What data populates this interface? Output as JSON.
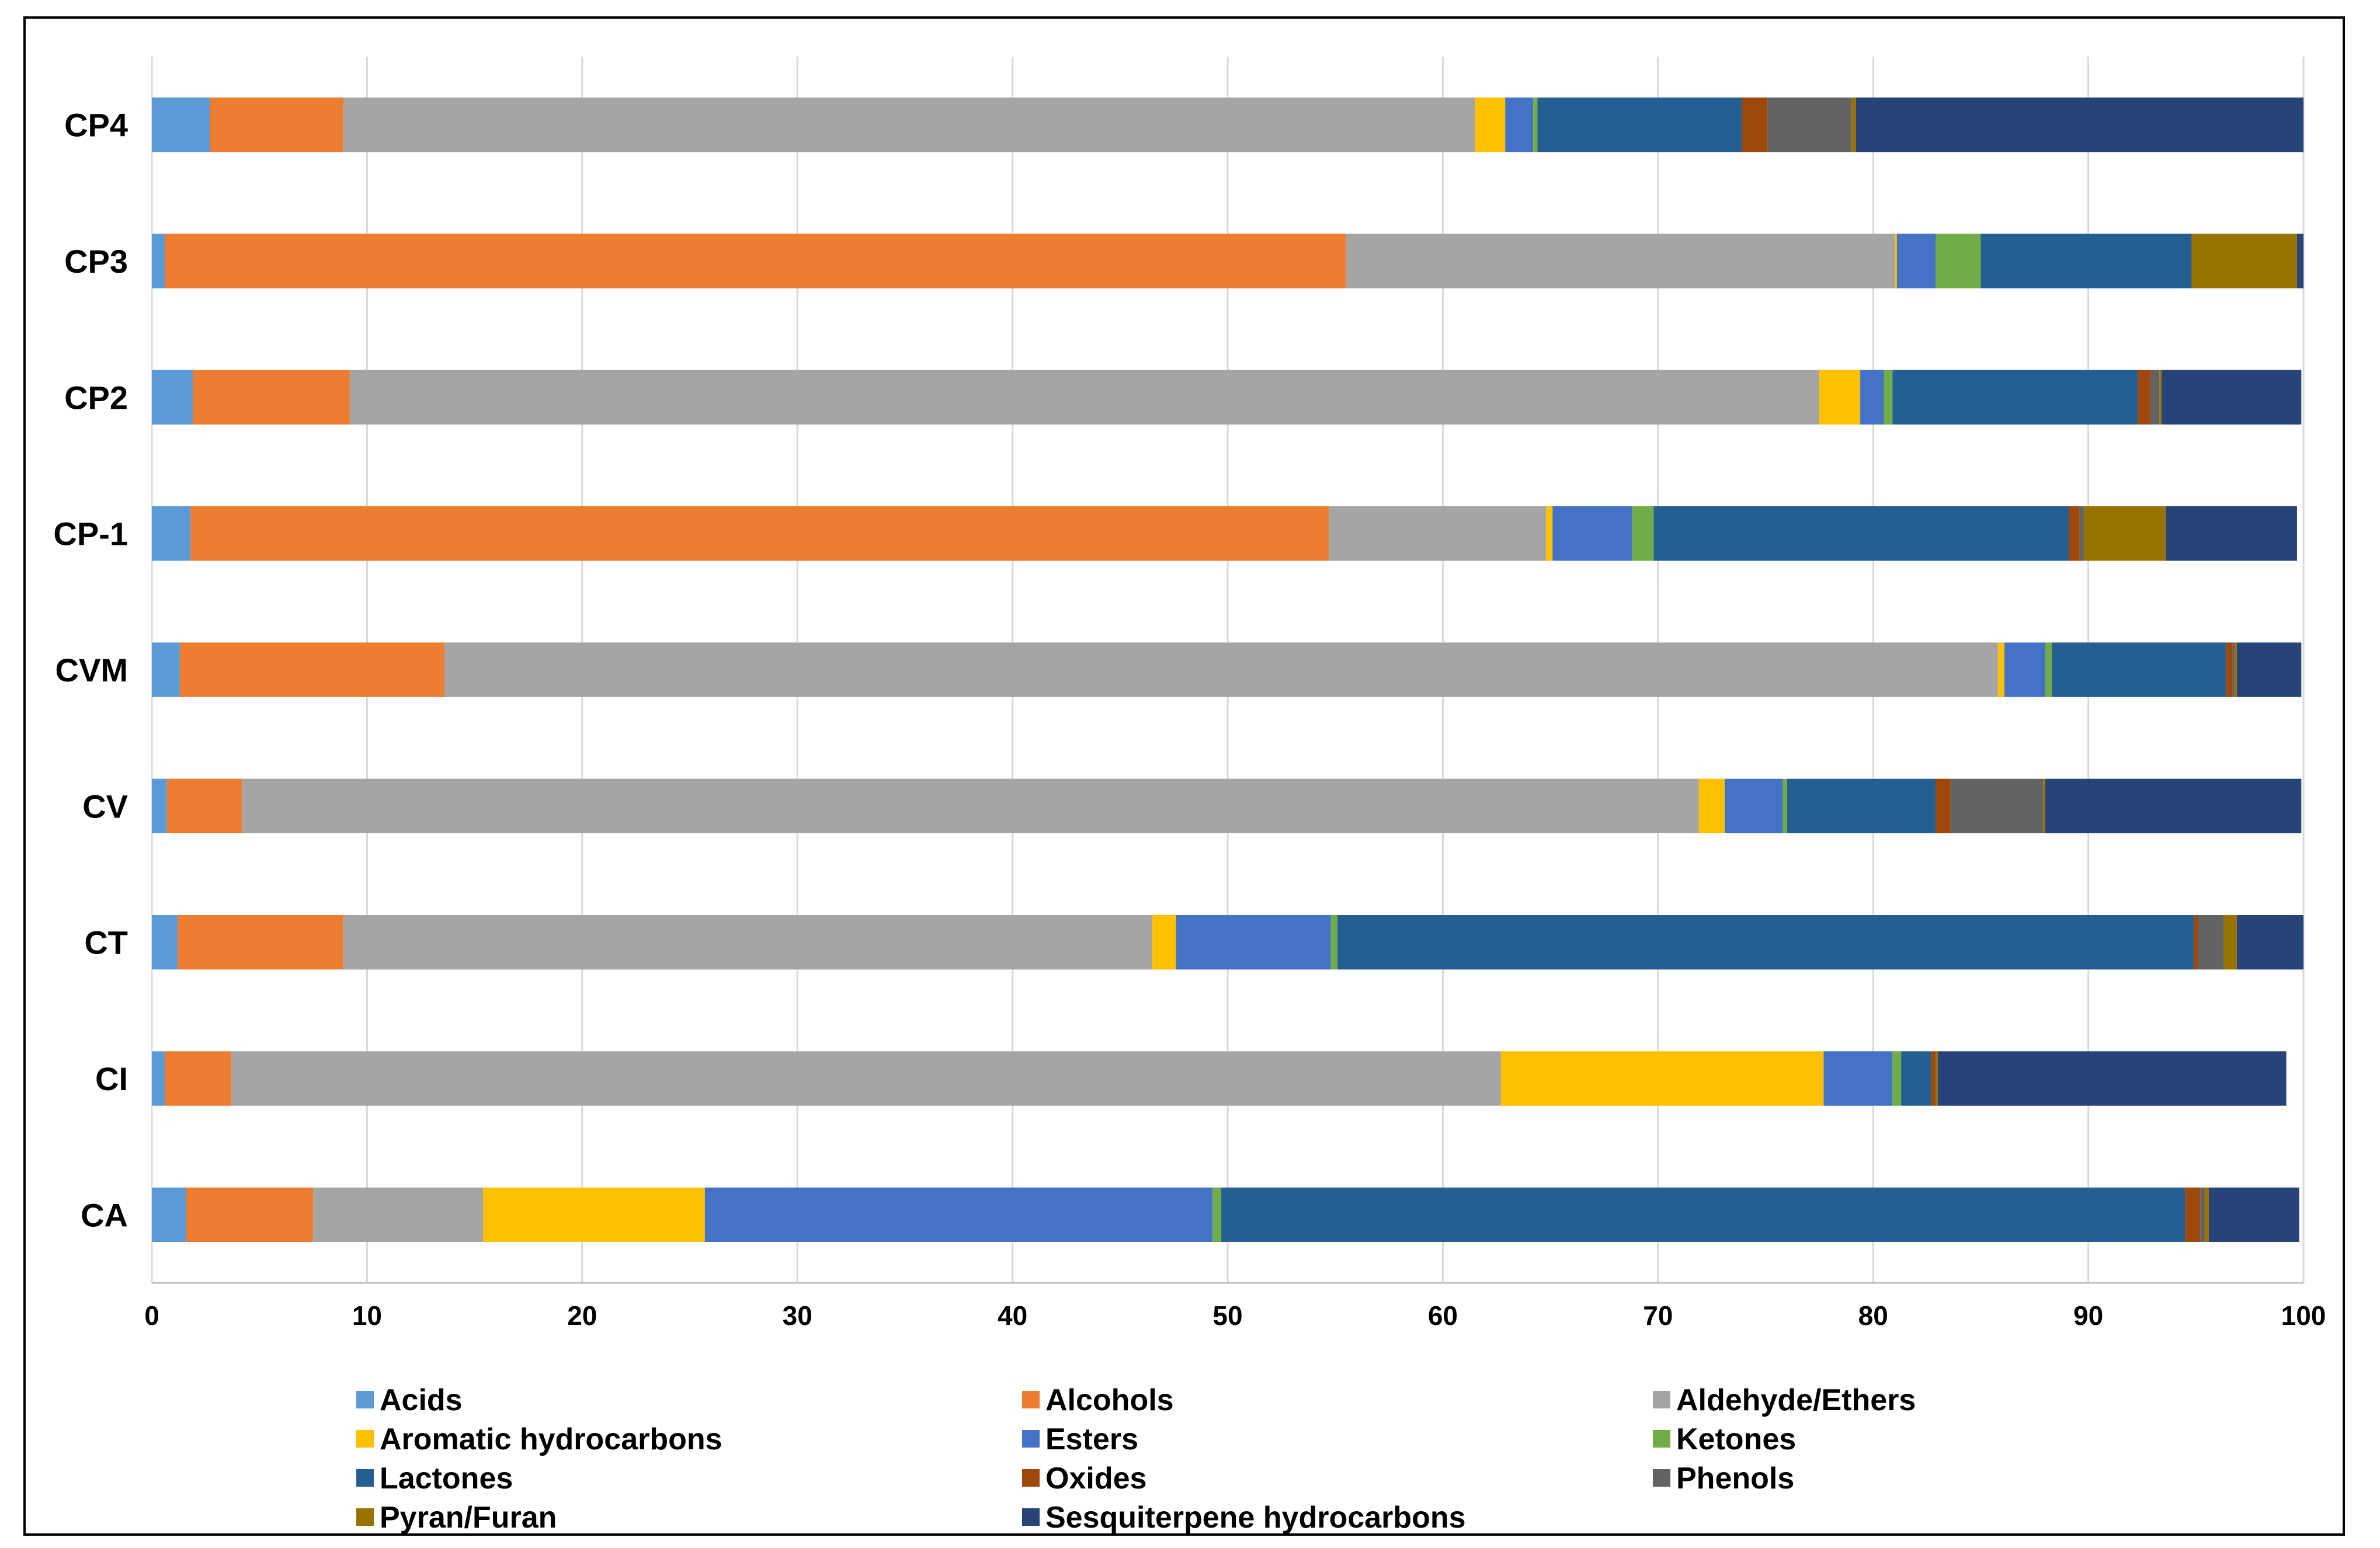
{
  "chart_data": {
    "type": "bar",
    "orientation": "horizontal",
    "stacked": true,
    "title": "",
    "xlabel": "",
    "ylabel": "",
    "xlim": [
      0,
      100
    ],
    "xticks": [
      0,
      10,
      20,
      30,
      40,
      50,
      60,
      70,
      80,
      90,
      100
    ],
    "grid": true,
    "legend_position": "bottom",
    "categories": [
      "CP4",
      "CP3",
      "CP2",
      "CP-1",
      "CVM",
      "CV",
      "CT",
      "CI",
      "CA"
    ],
    "series": [
      {
        "name": "Acids",
        "color": "#5B9BD5",
        "values": [
          2.7,
          0.6,
          1.9,
          1.8,
          1.3,
          0.7,
          1.2,
          0.6,
          1.6
        ]
      },
      {
        "name": "Alcohols",
        "color": "#ED7D31",
        "values": [
          6.2,
          54.9,
          7.3,
          52.9,
          12.3,
          3.5,
          7.7,
          3.1,
          5.9
        ]
      },
      {
        "name": "Aldehyde/Ethers",
        "color": "#A5A5A5",
        "values": [
          52.6,
          25.5,
          68.3,
          10.1,
          72.2,
          67.7,
          37.6,
          59.0,
          7.9
        ]
      },
      {
        "name": "Aromatic hydrocarbons",
        "color": "#FFC000",
        "values": [
          1.4,
          0.1,
          1.9,
          0.3,
          0.3,
          1.2,
          1.1,
          15.0,
          10.3
        ]
      },
      {
        "name": "Esters",
        "color": "#4472C4",
        "values": [
          1.3,
          1.8,
          1.1,
          3.7,
          1.9,
          2.7,
          7.2,
          3.2,
          23.6
        ]
      },
      {
        "name": "Ketones",
        "color": "#70AD47",
        "values": [
          0.2,
          2.1,
          0.4,
          1.0,
          0.3,
          0.2,
          0.3,
          0.4,
          0.4
        ]
      },
      {
        "name": "Lactones",
        "color": "#255E91",
        "values": [
          9.5,
          9.8,
          11.4,
          19.3,
          8.1,
          6.9,
          39.8,
          1.4,
          44.8
        ]
      },
      {
        "name": "Oxides",
        "color": "#9E480E",
        "values": [
          1.2,
          0.0,
          0.6,
          0.5,
          0.3,
          0.7,
          0.2,
          0.2,
          0.7
        ]
      },
      {
        "name": "Phenols",
        "color": "#636363",
        "values": [
          3.9,
          0.0,
          0.4,
          0.2,
          0.1,
          4.3,
          1.2,
          0.0,
          0.2
        ]
      },
      {
        "name": "Pyran/Furan",
        "color": "#997300",
        "values": [
          0.2,
          4.9,
          0.1,
          3.8,
          0.1,
          0.1,
          0.6,
          0.1,
          0.2
        ]
      },
      {
        "name": "Sesquiterpene hydrocarbons",
        "color": "#264478",
        "values": [
          20.8,
          0.3,
          6.5,
          6.1,
          3.0,
          11.9,
          3.1,
          16.2,
          4.2
        ]
      }
    ]
  }
}
